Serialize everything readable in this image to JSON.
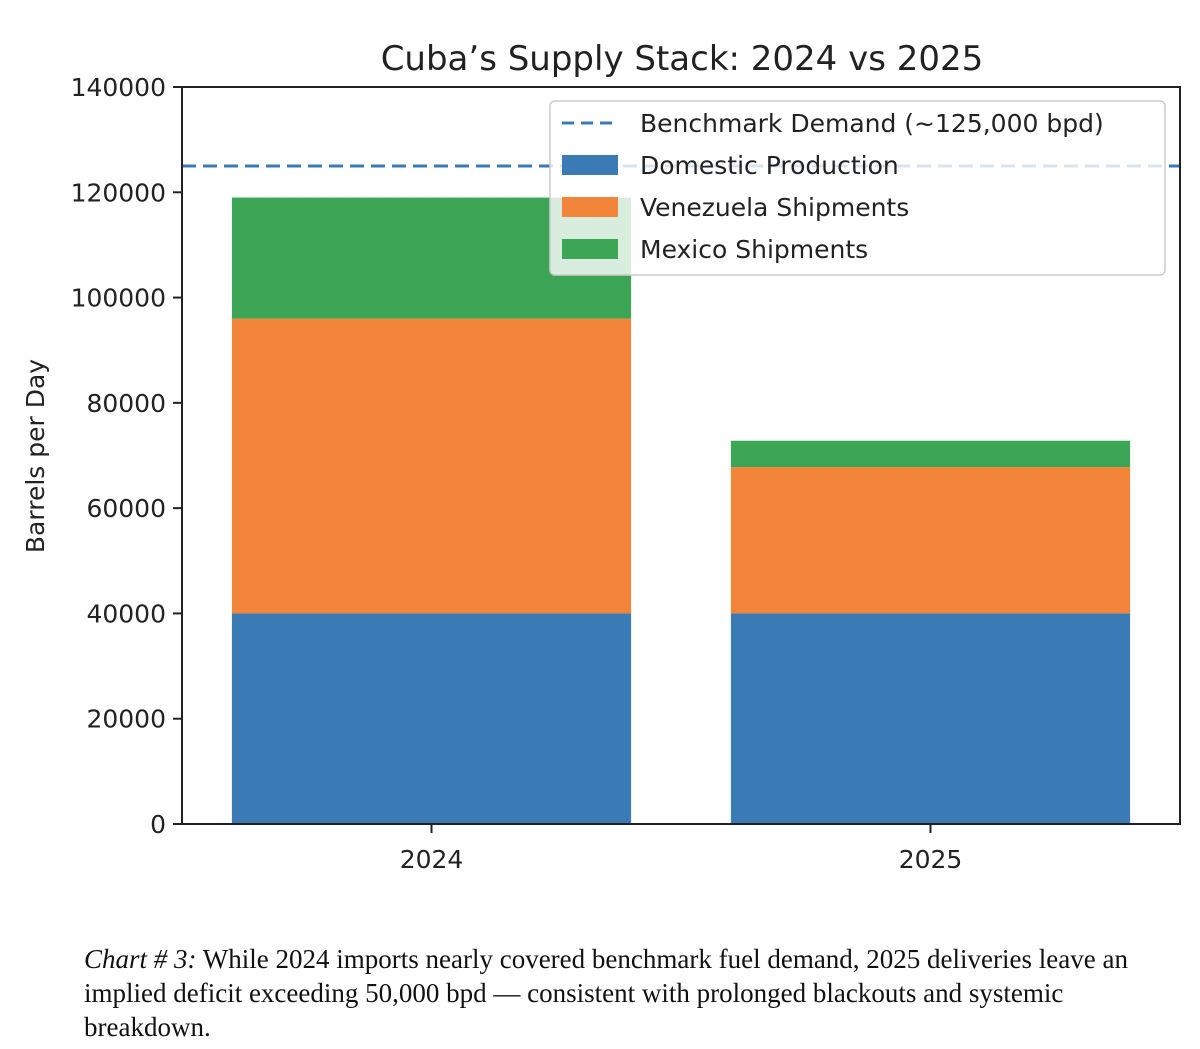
{
  "chart_data": {
    "type": "bar",
    "stacked": true,
    "title": "Cuba’s Supply Stack: 2024 vs 2025",
    "xlabel": "",
    "ylabel": "Barrels per Day",
    "ylim": [
      0,
      140000
    ],
    "yticks": [
      0,
      20000,
      40000,
      60000,
      80000,
      100000,
      120000,
      140000
    ],
    "categories": [
      "2024",
      "2025"
    ],
    "series": [
      {
        "name": "Domestic Production",
        "values": [
          40000,
          40000
        ],
        "color": "#3a7ab5"
      },
      {
        "name": "Venezuela Shipments",
        "values": [
          56000,
          27800
        ],
        "color": "#f2853a"
      },
      {
        "name": "Mexico Shipments",
        "values": [
          23000,
          5000
        ],
        "color": "#3ca556"
      }
    ],
    "reference_line": {
      "name": "Benchmark Demand (~125,000 bpd)",
      "value": 125000,
      "color": "#3a7ab5",
      "style": "dashed"
    },
    "legend_position": "top-right"
  },
  "caption": {
    "label": "Chart # 3:",
    "text": "While 2024 imports nearly covered benchmark fuel demand, 2025 deliveries leave an implied deficit exceeding 50,000 bpd — consistent with prolonged blackouts and systemic breakdown."
  }
}
